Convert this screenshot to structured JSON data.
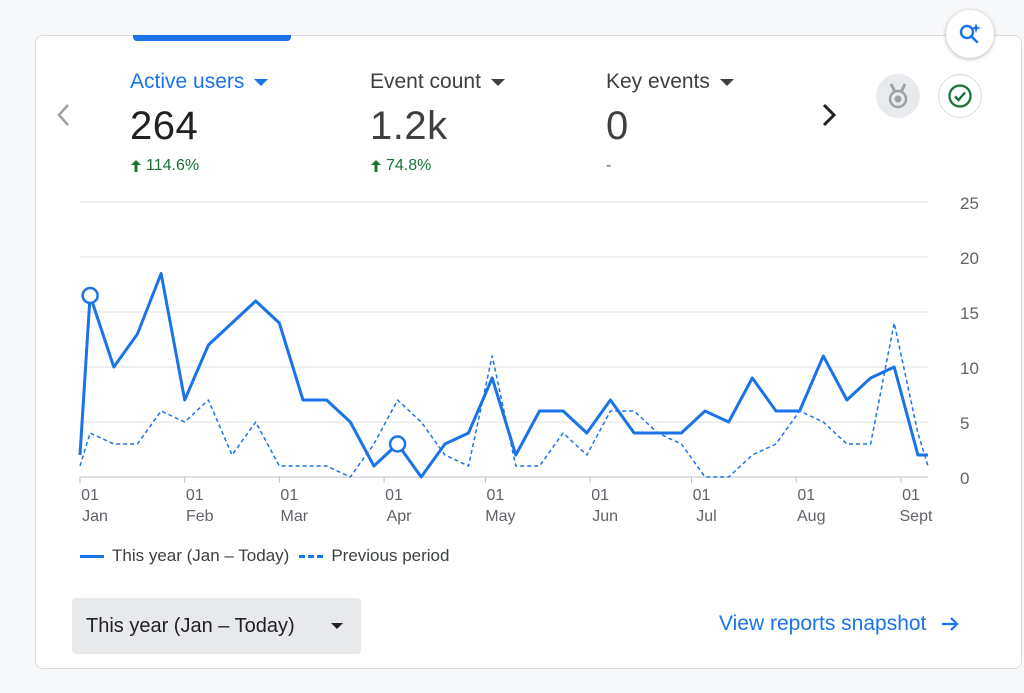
{
  "metrics": [
    {
      "label": "Active users",
      "value": "264",
      "change": "114.6%",
      "active": true
    },
    {
      "label": "Event count",
      "value": "1.2k",
      "change": "74.8%",
      "active": false
    },
    {
      "label": "Key events",
      "value": "0",
      "change": "-",
      "active": false
    }
  ],
  "icons": {
    "fab": "search-insights-icon",
    "prev": "chevron-left-icon",
    "next": "chevron-right-icon",
    "badge": "medal-icon",
    "check": "check-circle-icon"
  },
  "legend": {
    "this_year": "This year (Jan – Today)",
    "previous": "Previous period"
  },
  "dropdown": {
    "label": "This year (Jan – Today)"
  },
  "link": {
    "label": "View reports snapshot"
  },
  "colors": {
    "accent": "#1a73e8",
    "positive": "#137333"
  },
  "chart_data": {
    "type": "line",
    "title": "",
    "xlabel": "",
    "ylabel": "",
    "ylim": [
      0,
      25
    ],
    "y_ticks": [
      "0",
      "5",
      "10",
      "15",
      "20",
      "25"
    ],
    "x_ticks": [
      {
        "day": "01",
        "month": "Jan",
        "t": 0
      },
      {
        "day": "01",
        "month": "Feb",
        "t": 31
      },
      {
        "day": "01",
        "month": "Mar",
        "t": 59
      },
      {
        "day": "01",
        "month": "Apr",
        "t": 90
      },
      {
        "day": "01",
        "month": "May",
        "t": 120
      },
      {
        "day": "01",
        "month": "Jun",
        "t": 151
      },
      {
        "day": "01",
        "month": "Jul",
        "t": 181
      },
      {
        "day": "01",
        "month": "Aug",
        "t": 212
      },
      {
        "day": "01",
        "month": "Sept",
        "t": 243
      }
    ],
    "x_range": [
      0,
      251
    ],
    "grid": true,
    "legend_position": "bottom-left",
    "series": [
      {
        "name": "This year (Jan – Today)",
        "style": "solid",
        "t": [
          0,
          3,
          10,
          17,
          24,
          31,
          38,
          45,
          52,
          59,
          66,
          73,
          80,
          87,
          94,
          101,
          108,
          115,
          122,
          129,
          136,
          143,
          150,
          157,
          164,
          171,
          178,
          185,
          192,
          199,
          206,
          213,
          220,
          227,
          234,
          241,
          248,
          251
        ],
        "values": [
          2,
          16.5,
          10,
          13,
          18.5,
          7,
          12,
          14,
          16,
          14,
          7,
          7,
          5,
          1,
          3,
          0,
          3,
          4,
          9,
          2,
          6,
          6,
          4,
          7,
          4,
          4,
          4,
          6,
          5,
          9,
          6,
          6,
          11,
          7,
          9,
          10,
          2,
          2
        ],
        "markers_at": [
          1,
          14
        ]
      },
      {
        "name": "Previous period",
        "style": "dashed",
        "t": [
          0,
          3,
          10,
          17,
          24,
          31,
          38,
          45,
          52,
          59,
          66,
          73,
          80,
          87,
          94,
          101,
          108,
          115,
          122,
          129,
          136,
          143,
          150,
          157,
          164,
          171,
          178,
          185,
          192,
          199,
          206,
          213,
          220,
          227,
          234,
          241,
          248,
          251
        ],
        "values": [
          1,
          4,
          3,
          3,
          6,
          5,
          7,
          2,
          5,
          1,
          1,
          1,
          0,
          3,
          7,
          5,
          2,
          1,
          11,
          1,
          1,
          4,
          2,
          6,
          6,
          4,
          3,
          0,
          0,
          2,
          3,
          6,
          5,
          3,
          3,
          14,
          4,
          1
        ]
      }
    ]
  }
}
